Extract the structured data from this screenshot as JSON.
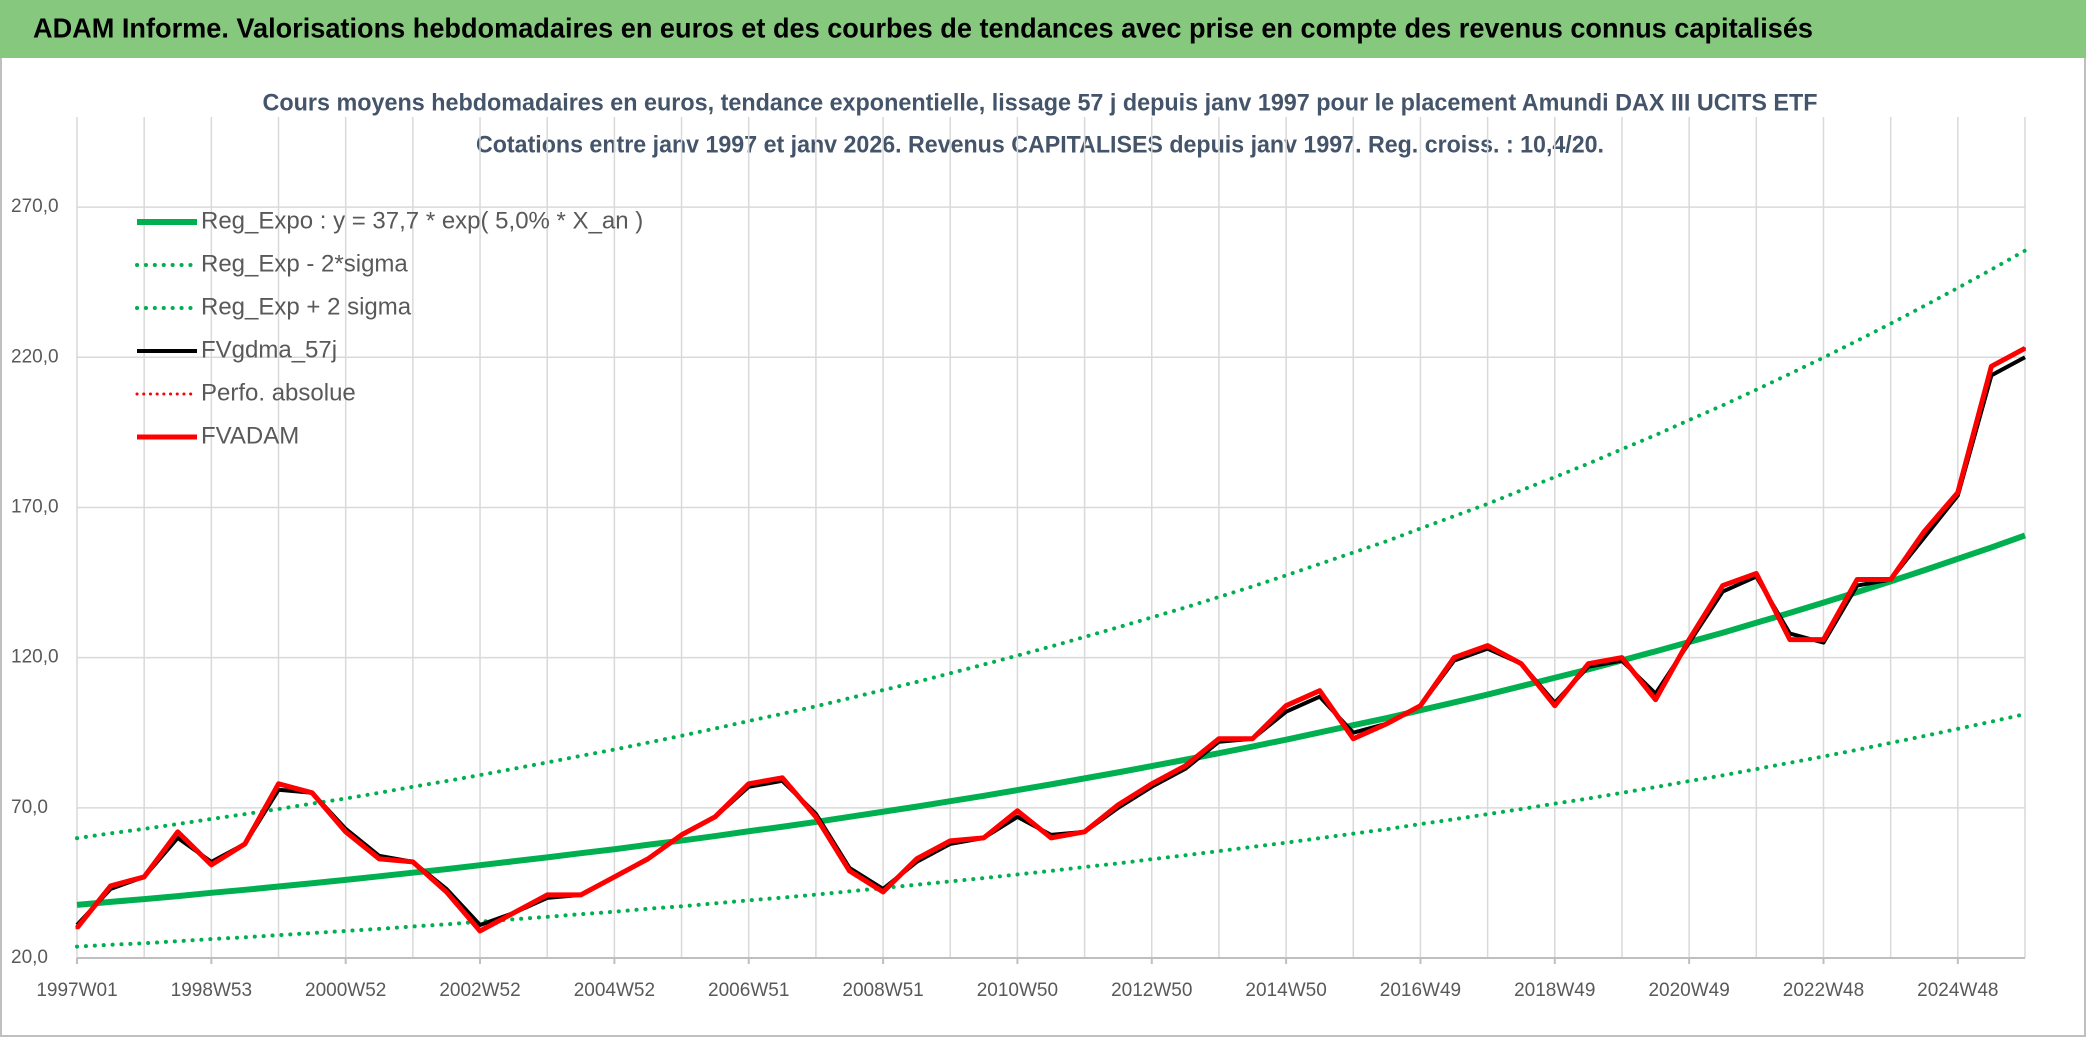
{
  "chart_data": {
    "type": "line",
    "header": "ADAM Informe. Valorisations hebdomadaires en euros et des courbes de tendances avec prise en compte des revenus connus capitalisés",
    "title": "Cours moyens hebdomadaires en euros, tendance exponentielle, lissage 57 j depuis janv 1997 pour le placement Amundi DAX III UCITS ETF",
    "subtitle": "Cotations entre janv 1997 et janv 2026. Revenus CAPITALISES depuis janv 1997. Reg. croiss. : 10,4/20.",
    "categories": [
      "1997W01",
      null,
      null,
      null,
      "1998W53",
      null,
      null,
      null,
      "2000W52",
      null,
      null,
      null,
      "2002W52",
      null,
      null,
      null,
      "2004W52",
      null,
      null,
      null,
      "2006W51",
      null,
      null,
      null,
      "2008W51",
      null,
      null,
      null,
      "2010W50",
      null,
      null,
      null,
      "2012W50",
      null,
      null,
      null,
      "2014W50",
      null,
      null,
      null,
      "2016W49",
      null,
      null,
      null,
      "2018W49",
      null,
      null,
      null,
      "2020W49",
      null,
      null,
      null,
      "2022W48",
      null,
      null,
      null,
      "2024W48",
      null,
      null
    ],
    "ylim": [
      20,
      300
    ],
    "yticks": [
      {
        "value": 20,
        "label": "20,0"
      },
      {
        "value": 70,
        "label": "70,0"
      },
      {
        "value": 120,
        "label": "120,0"
      },
      {
        "value": 170,
        "label": "170,0"
      },
      {
        "value": 220,
        "label": "220,0"
      },
      {
        "value": 270,
        "label": "270,0"
      }
    ],
    "grid": true,
    "legend": "upper left",
    "series": [
      {
        "name": "Reg_Expo : y = 37,7 * exp( 5,0% *  X_an )",
        "color": "#00b050",
        "style": "solid",
        "width": 6,
        "values": [
          37.7,
          38.7,
          39.6,
          40.6,
          41.7,
          42.7,
          43.8,
          44.9,
          46.0,
          47.2,
          48.4,
          49.6,
          50.9,
          52.2,
          53.5,
          54.9,
          56.2,
          57.7,
          59.1,
          60.6,
          62.2,
          63.7,
          65.3,
          67.0,
          68.7,
          70.4,
          72.2,
          74.0,
          75.9,
          77.8,
          79.8,
          81.8,
          83.9,
          86.0,
          88.2,
          90.4,
          92.7,
          95.1,
          97.5,
          99.9,
          102.5,
          105.1,
          107.7,
          110.5,
          113.3,
          116.1,
          119.1,
          122.1,
          125.2,
          128.3,
          131.6,
          134.9,
          138.3,
          141.8,
          145.4,
          149.1,
          152.9,
          156.7,
          160.7
        ]
      },
      {
        "name": "Reg_Exp - 2*sigma",
        "color": "#00b050",
        "style": "dotted",
        "width": 4,
        "values": [
          23.8,
          24.4,
          24.9,
          25.6,
          26.3,
          26.9,
          27.6,
          28.3,
          29.0,
          29.7,
          30.5,
          31.2,
          32.1,
          32.9,
          33.7,
          34.6,
          35.4,
          36.4,
          37.2,
          38.2,
          39.2,
          40.1,
          41.1,
          42.2,
          43.3,
          44.4,
          45.5,
          46.6,
          47.8,
          49.0,
          50.3,
          51.5,
          52.9,
          54.2,
          55.6,
          57.0,
          58.4,
          59.9,
          61.4,
          62.9,
          64.6,
          66.2,
          67.9,
          69.6,
          71.4,
          73.1,
          75.0,
          76.9,
          78.9,
          80.8,
          82.9,
          85.0,
          87.1,
          89.3,
          91.6,
          93.9,
          96.3,
          98.7,
          101.2
        ]
      },
      {
        "name": "Reg_Exp + 2 sigma",
        "color": "#00b050",
        "style": "dotted",
        "width": 4,
        "values": [
          59.9,
          61.5,
          63.0,
          64.6,
          66.3,
          67.9,
          69.6,
          71.4,
          73.1,
          75.0,
          77.0,
          78.9,
          80.9,
          83.0,
          85.1,
          87.3,
          89.4,
          91.7,
          94.0,
          96.4,
          98.9,
          101.3,
          103.8,
          106.5,
          109.2,
          111.9,
          114.8,
          117.7,
          120.7,
          123.7,
          126.9,
          130.1,
          133.4,
          136.7,
          140.2,
          143.7,
          147.4,
          151.2,
          155.0,
          158.8,
          163.0,
          167.1,
          171.2,
          175.7,
          180.1,
          184.6,
          189.4,
          194.1,
          199.1,
          204.0,
          209.2,
          214.5,
          219.9,
          225.5,
          231.2,
          237.1,
          243.1,
          249.2,
          255.5
        ]
      },
      {
        "name": "FVgdma_57j",
        "color": "#000000",
        "style": "solid",
        "width": 4,
        "values": [
          31,
          43,
          47,
          60,
          52,
          58,
          76,
          75,
          63,
          54,
          52,
          43,
          31,
          35,
          40,
          41,
          47,
          53,
          61,
          67,
          77,
          79,
          68,
          50,
          43,
          52,
          58,
          60,
          67,
          61,
          62,
          70,
          77,
          83,
          92,
          93,
          102,
          107,
          95,
          98,
          104,
          119,
          123,
          118,
          105,
          117,
          119,
          108,
          125,
          142,
          147,
          128,
          125,
          144,
          146,
          160,
          174,
          214,
          220
        ]
      },
      {
        "name": "Perfo. absolue",
        "color": "#ff0000",
        "style": "dotted",
        "width": 3,
        "values": [
          30,
          44,
          47,
          62,
          51,
          58,
          78,
          75,
          62,
          53,
          52,
          42,
          29,
          35,
          41,
          41,
          47,
          53,
          61,
          67,
          78,
          80,
          67,
          49,
          42,
          53,
          59,
          60,
          69,
          60,
          62,
          71,
          78,
          84,
          93,
          93,
          104,
          109,
          93,
          98,
          104,
          120,
          124,
          118,
          104,
          118,
          120,
          106,
          126,
          144,
          148,
          126,
          126,
          146,
          146,
          162,
          175,
          217,
          223
        ]
      },
      {
        "name": "FVADAM",
        "color": "#ff0000",
        "style": "solid",
        "width": 5,
        "values": [
          30,
          44,
          47,
          62,
          51,
          58,
          78,
          75,
          62,
          53,
          52,
          42,
          29,
          35,
          41,
          41,
          47,
          53,
          61,
          67,
          78,
          80,
          67,
          49,
          42,
          53,
          59,
          60,
          69,
          60,
          62,
          71,
          78,
          84,
          93,
          93,
          104,
          109,
          93,
          98,
          104,
          120,
          124,
          118,
          104,
          118,
          120,
          106,
          126,
          144,
          148,
          126,
          126,
          146,
          146,
          162,
          175,
          217,
          223
        ]
      }
    ]
  }
}
